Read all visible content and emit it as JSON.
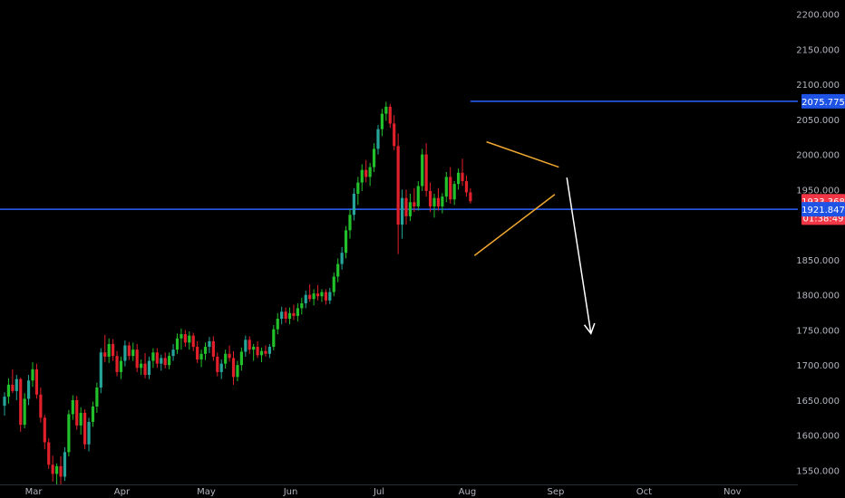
{
  "chart_data": {
    "type": "candlestick",
    "y_range": [
      1530,
      2220
    ],
    "y_ticks": [
      {
        "value": 2200,
        "label": "2200.000"
      },
      {
        "value": 2150,
        "label": "2150.000"
      },
      {
        "value": 2100,
        "label": "2100.000"
      },
      {
        "value": 2050,
        "label": "2050.000"
      },
      {
        "value": 2000,
        "label": "2000.000"
      },
      {
        "value": 1950,
        "label": "1950.000"
      },
      {
        "value": 1850,
        "label": "1850.000"
      },
      {
        "value": 1800,
        "label": "1800.000"
      },
      {
        "value": 1750,
        "label": "1750.000"
      },
      {
        "value": 1700,
        "label": "1700.000"
      },
      {
        "value": 1650,
        "label": "1650.000"
      },
      {
        "value": 1600,
        "label": "1600.000"
      },
      {
        "value": 1550,
        "label": "1550.000"
      }
    ],
    "x_ticks": [
      {
        "label": "Mar",
        "bar": 0
      },
      {
        "label": "Apr",
        "bar": 22
      },
      {
        "label": "May",
        "bar": 43
      },
      {
        "label": "Jun",
        "bar": 64
      },
      {
        "label": "Jul",
        "bar": 86
      },
      {
        "label": "Aug",
        "bar": 108
      },
      {
        "label": "Sep",
        "bar": 130
      },
      {
        "label": "Oct",
        "bar": 152
      },
      {
        "label": "Nov",
        "bar": 174
      }
    ],
    "price_tags": [
      {
        "name": "resistance-tag",
        "value": 2075.775,
        "label": "2075.775",
        "color": "#1e53e5"
      },
      {
        "name": "last-price-tag",
        "value": 1933.368,
        "label": "1933.368",
        "color": "#f23645"
      },
      {
        "name": "countdown-tag",
        "value": 1910,
        "label": "01:38:49",
        "color": "#f23645"
      },
      {
        "name": "support-tag",
        "value": 1921.847,
        "label": "1921.847",
        "color": "#1e53e5"
      }
    ],
    "horizontal_lines": [
      {
        "name": "resistance-line",
        "value": 2075.775,
        "start_bar": 116,
        "color": "#2962ff"
      },
      {
        "name": "support-line",
        "value": 1921.847,
        "start_bar": -10,
        "color": "#2962ff"
      }
    ],
    "triangle": {
      "upper": [
        {
          "bar": 120,
          "price": 2018
        },
        {
          "bar": 138,
          "price": 1982
        }
      ],
      "lower": [
        {
          "bar": 117,
          "price": 1856
        },
        {
          "bar": 137,
          "price": 1943
        }
      ],
      "color": "#f0a830"
    },
    "arrow": {
      "from": {
        "bar": 140,
        "price": 1967
      },
      "to": {
        "bar": 146,
        "price": 1745
      },
      "color": "#ffffff"
    },
    "colors": {
      "up": "#26a69a",
      "up_alt": "#22c02a",
      "down": "#e0202a",
      "background": "#000000",
      "axis_text": "#b2b5be"
    },
    "ohlc": [
      [
        1642,
        1661,
        1628,
        1655
      ],
      [
        1655,
        1681,
        1645,
        1672
      ],
      [
        1672,
        1694,
        1660,
        1663
      ],
      [
        1663,
        1686,
        1650,
        1680
      ],
      [
        1680,
        1682,
        1605,
        1615
      ],
      [
        1615,
        1660,
        1610,
        1652
      ],
      [
        1652,
        1686,
        1643,
        1678
      ],
      [
        1678,
        1704,
        1669,
        1694
      ],
      [
        1694,
        1702,
        1652,
        1658
      ],
      [
        1658,
        1668,
        1618,
        1625
      ],
      [
        1625,
        1629,
        1580,
        1590
      ],
      [
        1590,
        1596,
        1552,
        1558
      ],
      [
        1558,
        1571,
        1534,
        1545
      ],
      [
        1545,
        1560,
        1530,
        1556
      ],
      [
        1556,
        1570,
        1530,
        1541
      ],
      [
        1541,
        1583,
        1535,
        1576
      ],
      [
        1576,
        1636,
        1570,
        1630
      ],
      [
        1630,
        1657,
        1622,
        1650
      ],
      [
        1650,
        1656,
        1608,
        1614
      ],
      [
        1614,
        1640,
        1601,
        1632
      ],
      [
        1632,
        1637,
        1580,
        1587
      ],
      [
        1587,
        1625,
        1577,
        1619
      ],
      [
        1619,
        1648,
        1612,
        1641
      ],
      [
        1641,
        1675,
        1632,
        1668
      ],
      [
        1668,
        1724,
        1660,
        1718
      ],
      [
        1718,
        1743,
        1704,
        1712
      ],
      [
        1712,
        1738,
        1703,
        1730
      ],
      [
        1730,
        1737,
        1706,
        1713
      ],
      [
        1713,
        1720,
        1684,
        1690
      ],
      [
        1690,
        1712,
        1680,
        1706
      ],
      [
        1706,
        1735,
        1698,
        1728
      ],
      [
        1728,
        1733,
        1707,
        1713
      ],
      [
        1713,
        1732,
        1706,
        1722
      ],
      [
        1722,
        1730,
        1690,
        1696
      ],
      [
        1696,
        1708,
        1686,
        1702
      ],
      [
        1702,
        1717,
        1681,
        1686
      ],
      [
        1686,
        1712,
        1680,
        1706
      ],
      [
        1706,
        1724,
        1696,
        1718
      ],
      [
        1718,
        1724,
        1696,
        1702
      ],
      [
        1702,
        1715,
        1692,
        1710
      ],
      [
        1710,
        1718,
        1695,
        1700
      ],
      [
        1700,
        1718,
        1694,
        1713
      ],
      [
        1713,
        1730,
        1706,
        1722
      ],
      [
        1722,
        1745,
        1716,
        1738
      ],
      [
        1738,
        1752,
        1722,
        1744
      ],
      [
        1744,
        1750,
        1726,
        1732
      ],
      [
        1732,
        1748,
        1722,
        1742
      ],
      [
        1742,
        1746,
        1720,
        1726
      ],
      [
        1726,
        1734,
        1703,
        1708
      ],
      [
        1708,
        1722,
        1697,
        1716
      ],
      [
        1716,
        1732,
        1707,
        1726
      ],
      [
        1726,
        1740,
        1717,
        1734
      ],
      [
        1734,
        1741,
        1706,
        1712
      ],
      [
        1712,
        1718,
        1684,
        1690
      ],
      [
        1690,
        1708,
        1680,
        1702
      ],
      [
        1702,
        1722,
        1695,
        1716
      ],
      [
        1716,
        1728,
        1705,
        1710
      ],
      [
        1710,
        1720,
        1672,
        1683
      ],
      [
        1683,
        1706,
        1677,
        1700
      ],
      [
        1700,
        1725,
        1692,
        1719
      ],
      [
        1719,
        1742,
        1712,
        1736
      ],
      [
        1736,
        1741,
        1716,
        1722
      ],
      [
        1722,
        1730,
        1706,
        1726
      ],
      [
        1726,
        1734,
        1710,
        1714
      ],
      [
        1714,
        1725,
        1704,
        1720
      ],
      [
        1720,
        1728,
        1712,
        1716
      ],
      [
        1716,
        1730,
        1710,
        1726
      ],
      [
        1726,
        1757,
        1721,
        1751
      ],
      [
        1751,
        1774,
        1744,
        1766
      ],
      [
        1766,
        1783,
        1758,
        1776
      ],
      [
        1776,
        1782,
        1760,
        1766
      ],
      [
        1766,
        1782,
        1758,
        1774
      ],
      [
        1774,
        1786,
        1764,
        1770
      ],
      [
        1770,
        1788,
        1762,
        1781
      ],
      [
        1781,
        1796,
        1772,
        1788
      ],
      [
        1788,
        1806,
        1781,
        1800
      ],
      [
        1800,
        1815,
        1790,
        1794
      ],
      [
        1794,
        1808,
        1785,
        1802
      ],
      [
        1802,
        1814,
        1792,
        1798
      ],
      [
        1798,
        1808,
        1790,
        1804
      ],
      [
        1804,
        1808,
        1786,
        1792
      ],
      [
        1792,
        1810,
        1787,
        1804
      ],
      [
        1804,
        1832,
        1798,
        1826
      ],
      [
        1826,
        1852,
        1818,
        1844
      ],
      [
        1844,
        1868,
        1836,
        1860
      ],
      [
        1860,
        1898,
        1852,
        1892
      ],
      [
        1892,
        1922,
        1880,
        1914
      ],
      [
        1914,
        1952,
        1906,
        1944
      ],
      [
        1944,
        1968,
        1928,
        1960
      ],
      [
        1960,
        1986,
        1948,
        1978
      ],
      [
        1978,
        1992,
        1960,
        1968
      ],
      [
        1968,
        1988,
        1955,
        1982
      ],
      [
        1982,
        2016,
        1975,
        2008
      ],
      [
        2008,
        2042,
        2000,
        2036
      ],
      [
        2036,
        2065,
        2026,
        2058
      ],
      [
        2058,
        2075,
        2048,
        2068
      ],
      [
        2068,
        2072,
        2038,
        2044
      ],
      [
        2044,
        2056,
        2006,
        2012
      ],
      [
        2012,
        2030,
        1858,
        1900
      ],
      [
        1900,
        1950,
        1880,
        1938
      ],
      [
        1938,
        1950,
        1900,
        1912
      ],
      [
        1912,
        1944,
        1905,
        1932
      ],
      [
        1932,
        1952,
        1918,
        1926
      ],
      [
        1926,
        1962,
        1920,
        1955
      ],
      [
        1955,
        2008,
        1948,
        2000
      ],
      [
        2000,
        2016,
        1940,
        1948
      ],
      [
        1948,
        1960,
        1918,
        1926
      ],
      [
        1926,
        1944,
        1910,
        1938
      ],
      [
        1938,
        1952,
        1920,
        1926
      ],
      [
        1926,
        1945,
        1916,
        1940
      ],
      [
        1940,
        1975,
        1932,
        1968
      ],
      [
        1968,
        1982,
        1930,
        1936
      ],
      [
        1936,
        1962,
        1928,
        1958
      ],
      [
        1958,
        1980,
        1950,
        1974
      ],
      [
        1974,
        1994,
        1955,
        1962
      ],
      [
        1962,
        1970,
        1940,
        1946
      ],
      [
        1946,
        1952,
        1930,
        1933.368
      ]
    ]
  }
}
